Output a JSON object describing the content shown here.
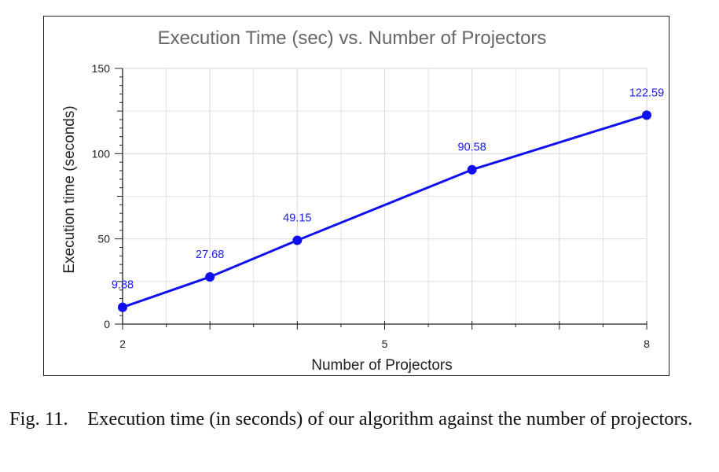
{
  "chart_data": {
    "type": "line",
    "title": "Execution Time (sec) vs. Number of Projectors",
    "xlabel": "Number of Projectors",
    "ylabel": "Execution time (seconds)",
    "x": [
      2,
      3,
      4,
      6,
      8
    ],
    "series": [
      {
        "values": [
          9.88,
          27.68,
          49.15,
          90.58,
          122.59
        ]
      }
    ],
    "data_labels": [
      "9.88",
      "27.68",
      "49.15",
      "90.58",
      "122.59"
    ],
    "xlim": [
      2,
      8
    ],
    "ylim": [
      0,
      150
    ],
    "xticks": [
      2,
      5,
      8
    ],
    "xtick_labels": [
      "2",
      "5",
      "8"
    ],
    "yticks": [
      0,
      50,
      100,
      150
    ],
    "ytick_labels": [
      "0",
      "50",
      "100",
      "150"
    ],
    "grid": true,
    "colors": {
      "line": "#1010ee",
      "marker": "#1010ee",
      "label": "#1a1aee",
      "title": "#666666",
      "grid": "#dddddd"
    }
  },
  "caption": {
    "label": "Fig. 11.",
    "text": "Execution time (in seconds) of our algorithm against the number of projectors."
  }
}
